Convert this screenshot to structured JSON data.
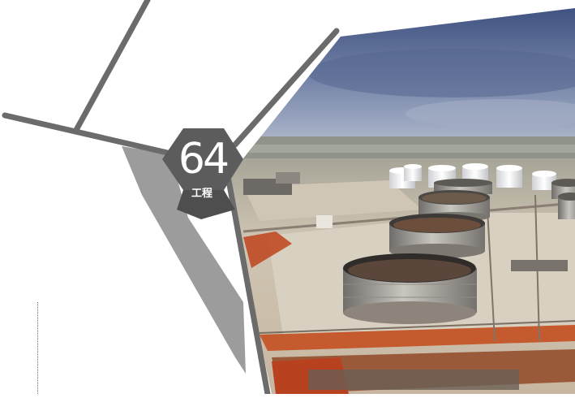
{
  "page_number": "64",
  "section_label": "工程",
  "photo": {
    "subject": "aerial-view-oil-storage-tank-farm"
  },
  "colors": {
    "accent_line": "#6b6b6b",
    "hexagon": "#5c5c5c",
    "gray_band": "#9c9c9c",
    "sky_top": "#3d4f7e",
    "sky_bottom": "#b9c0cf",
    "ground": "#c9bfae",
    "tank_white": "#f2f2f2",
    "red_soil": "#c04a25"
  }
}
